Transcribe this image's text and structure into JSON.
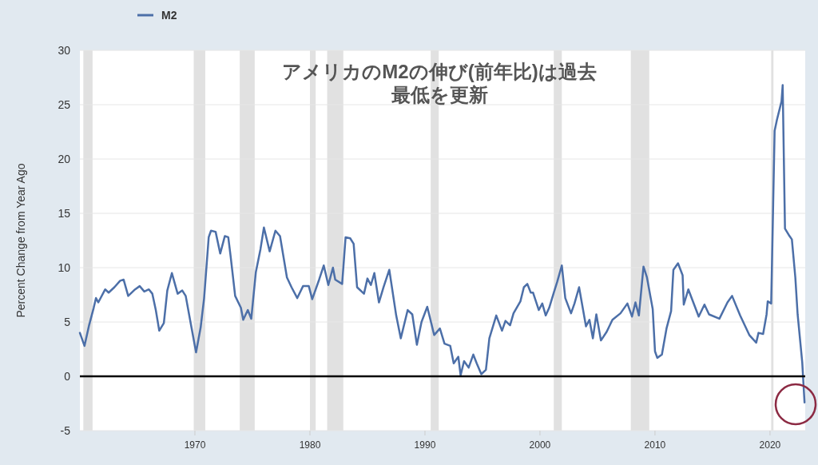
{
  "chart_data": {
    "type": "line",
    "title": "アメリカのM2の伸び(前年比)は過去最低を更新",
    "ylabel": "Percent Change from Year Ago",
    "series": [
      {
        "name": "M2",
        "color": "#4c6fa8",
        "x": [
          1960.0,
          1960.4,
          1960.8,
          1961.2,
          1961.4,
          1961.6,
          1962.2,
          1962.5,
          1963.0,
          1963.5,
          1963.8,
          1964.2,
          1964.8,
          1965.2,
          1965.6,
          1966.0,
          1966.3,
          1966.6,
          1966.9,
          1967.3,
          1967.6,
          1968.0,
          1968.5,
          1968.9,
          1969.2,
          1969.7,
          1970.1,
          1970.5,
          1970.8,
          1971.2,
          1971.4,
          1971.8,
          1972.2,
          1972.6,
          1972.9,
          1973.1,
          1973.5,
          1974.0,
          1974.2,
          1974.6,
          1974.9,
          1975.3,
          1975.7,
          1976.0,
          1976.5,
          1977.0,
          1977.4,
          1978.0,
          1978.4,
          1978.9,
          1979.4,
          1979.9,
          1980.2,
          1980.8,
          1981.2,
          1981.6,
          1982.0,
          1982.2,
          1982.8,
          1983.1,
          1983.5,
          1983.8,
          1984.1,
          1984.7,
          1985.0,
          1985.3,
          1985.6,
          1986.0,
          1986.4,
          1986.9,
          1987.5,
          1987.9,
          1988.5,
          1988.9,
          1989.3,
          1989.7,
          1990.2,
          1990.8,
          1991.3,
          1991.7,
          1992.2,
          1992.5,
          1992.9,
          1993.1,
          1993.4,
          1993.8,
          1994.2,
          1994.5,
          1994.9,
          1995.3,
          1995.6,
          1996.2,
          1996.7,
          1997.0,
          1997.4,
          1997.7,
          1998.3,
          1998.6,
          1998.9,
          1999.2,
          1999.4,
          1999.9,
          2000.2,
          2000.5,
          2000.8,
          2001.2,
          2001.5,
          2001.9,
          2002.2,
          2002.7,
          2003.0,
          2003.4,
          2004.0,
          2004.3,
          2004.6,
          2004.9,
          2005.3,
          2005.8,
          2006.3,
          2007.0,
          2007.6,
          2008.0,
          2008.3,
          2008.6,
          2009.0,
          2009.3,
          2009.8,
          2010.0,
          2010.2,
          2010.6,
          2011.0,
          2011.4,
          2011.6,
          2012.0,
          2012.4,
          2012.5,
          2012.9,
          2013.8,
          2014.3,
          2014.7,
          2015.6,
          2016.3,
          2016.7,
          2017.4,
          2018.2,
          2018.8,
          2019.0,
          2019.4,
          2019.7,
          2019.8,
          2020.1,
          2020.4,
          2020.6,
          2021.0,
          2021.1,
          2021.3,
          2021.7,
          2021.9,
          2022.2,
          2022.4,
          2022.8,
          2023.0
        ],
        "values": [
          4.0,
          2.8,
          4.7,
          6.3,
          7.2,
          6.8,
          8.0,
          7.7,
          8.2,
          8.8,
          8.9,
          7.4,
          8.0,
          8.3,
          7.8,
          8.0,
          7.6,
          6.1,
          4.2,
          4.9,
          7.9,
          9.5,
          7.6,
          7.9,
          7.4,
          4.5,
          2.2,
          4.5,
          7.2,
          12.8,
          13.4,
          13.3,
          11.3,
          12.9,
          12.8,
          11.1,
          7.4,
          6.3,
          5.2,
          6.1,
          5.3,
          9.6,
          11.7,
          13.7,
          11.5,
          13.4,
          12.9,
          9.1,
          8.2,
          7.2,
          8.3,
          8.3,
          7.1,
          8.9,
          10.2,
          8.4,
          10.0,
          8.9,
          8.5,
          12.8,
          12.7,
          12.2,
          8.2,
          7.6,
          9.0,
          8.4,
          9.5,
          6.8,
          8.2,
          9.8,
          5.6,
          3.5,
          6.1,
          5.7,
          2.9,
          5.0,
          6.4,
          3.8,
          4.4,
          3.0,
          2.8,
          1.2,
          1.8,
          0.1,
          1.4,
          0.8,
          2.0,
          1.2,
          0.2,
          0.6,
          3.5,
          5.6,
          4.2,
          5.1,
          4.7,
          5.8,
          6.9,
          8.2,
          8.5,
          7.7,
          7.7,
          6.1,
          6.7,
          5.6,
          6.3,
          7.7,
          8.7,
          10.2,
          7.2,
          5.8,
          6.7,
          8.2,
          4.6,
          5.2,
          3.5,
          5.7,
          3.3,
          4.1,
          5.2,
          5.8,
          6.7,
          5.5,
          6.8,
          5.6,
          10.1,
          9.1,
          6.2,
          2.3,
          1.7,
          2.0,
          4.4,
          6.0,
          9.8,
          10.4,
          9.3,
          6.6,
          8.0,
          5.5,
          6.6,
          5.7,
          5.3,
          6.8,
          7.4,
          5.6,
          3.8,
          3.1,
          4.0,
          3.9,
          5.7,
          6.9,
          6.7,
          22.6,
          23.6,
          25.3,
          26.8,
          13.6,
          12.9,
          12.6,
          9.1,
          5.7,
          1.3,
          -2.4
        ]
      }
    ],
    "xlim": [
      1960,
      2023.06
    ],
    "xticks": [
      1970,
      1980,
      1990,
      2000,
      2010,
      2020
    ],
    "ylim": [
      -5,
      30
    ],
    "yticks": [
      -5,
      0,
      5,
      10,
      15,
      20,
      25,
      30
    ],
    "grid": "y",
    "legend": "top left",
    "line_style": "solid",
    "marker": "none",
    "ref_lines": [
      {
        "axis": "y",
        "value": 0,
        "color": "#000000"
      }
    ],
    "bands": [
      {
        "axis": "x",
        "from": 1960.3,
        "to": 1961.1,
        "color": "#e1e1e1"
      },
      {
        "axis": "x",
        "from": 1969.9,
        "to": 1970.9,
        "color": "#e1e1e1"
      },
      {
        "axis": "x",
        "from": 1973.9,
        "to": 1975.2,
        "color": "#e1e1e1"
      },
      {
        "axis": "x",
        "from": 1980.0,
        "to": 1980.5,
        "color": "#e1e1e1"
      },
      {
        "axis": "x",
        "from": 1981.5,
        "to": 1982.9,
        "color": "#e1e1e1"
      },
      {
        "axis": "x",
        "from": 1990.5,
        "to": 1991.2,
        "color": "#e1e1e1"
      },
      {
        "axis": "x",
        "from": 2001.2,
        "to": 2001.9,
        "color": "#e1e1e1"
      },
      {
        "axis": "x",
        "from": 2007.9,
        "to": 2009.5,
        "color": "#e1e1e1"
      },
      {
        "axis": "x",
        "from": 2020.1,
        "to": 2020.3,
        "color": "#e1e1e1"
      }
    ]
  }
}
